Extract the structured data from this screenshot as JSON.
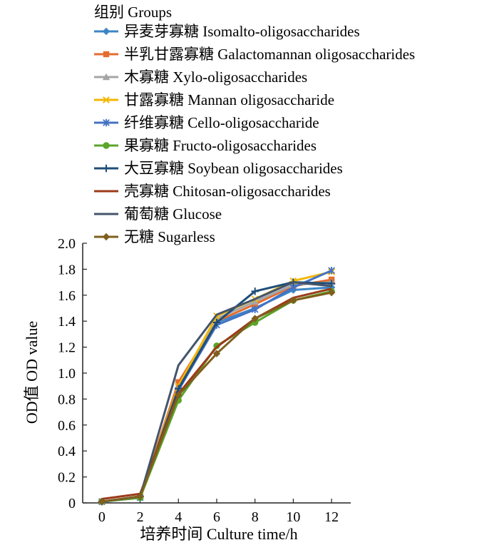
{
  "chart_data": {
    "type": "line",
    "title": "",
    "legend_title": "组别  Groups",
    "legend_position": "top-left",
    "xlabel": "培养时间  Culture time/h",
    "ylabel": "OD值  OD value",
    "x": [
      0,
      2,
      4,
      6,
      8,
      10,
      12
    ],
    "xticks": [
      "0",
      "2",
      "4",
      "6",
      "8",
      "10",
      "12"
    ],
    "yticks": [
      "0",
      "0.2",
      "0.4",
      "0.6",
      "0.8",
      "1.0",
      "1.2",
      "1.4",
      "1.6",
      "1.8",
      "2.0"
    ],
    "xlim": [
      -1,
      13
    ],
    "ylim": [
      0,
      2.0
    ],
    "grid": false,
    "series": [
      {
        "name": "异麦芽寡糖  Isomalto-oligosaccharides",
        "color": "#3d85c6",
        "marker": "diamond",
        "values": [
          0.01,
          0.04,
          0.88,
          1.39,
          1.5,
          1.64,
          1.66
        ]
      },
      {
        "name": "半乳甘露寡糖  Galactomannan oligosaccharides",
        "color": "#e46c2e",
        "marker": "square",
        "values": [
          0.01,
          0.05,
          0.93,
          1.4,
          1.53,
          1.67,
          1.72
        ]
      },
      {
        "name": "木寡糖  Xylo-oligosaccharides",
        "color": "#a5a5a5",
        "marker": "triangle",
        "values": [
          0.01,
          0.05,
          0.86,
          1.42,
          1.55,
          1.68,
          1.7
        ]
      },
      {
        "name": "甘露寡糖  Mannan oligosaccharide",
        "color": "#f2b705",
        "marker": "x",
        "values": [
          0.01,
          0.05,
          0.9,
          1.44,
          1.57,
          1.71,
          1.78
        ]
      },
      {
        "name": "纤维寡糖  Cello-oligosaccharide",
        "color": "#4472c4",
        "marker": "star",
        "values": [
          0.01,
          0.04,
          0.87,
          1.37,
          1.49,
          1.66,
          1.79
        ]
      },
      {
        "name": "果寡糖  Fructo-oligosaccharides",
        "color": "#5aa52a",
        "marker": "circle",
        "values": [
          0.01,
          0.04,
          0.79,
          1.21,
          1.39,
          1.56,
          1.63
        ]
      },
      {
        "name": "大豆寡糖  Soybean oligosaccharides",
        "color": "#1f4e79",
        "marker": "plus",
        "values": [
          0.01,
          0.05,
          0.88,
          1.39,
          1.63,
          1.7,
          1.69
        ]
      },
      {
        "name": "壳寡糖  Chitosan-oligosaccharides",
        "color": "#9c3a1a",
        "marker": "none",
        "values": [
          0.03,
          0.07,
          0.84,
          1.2,
          1.42,
          1.58,
          1.65
        ]
      },
      {
        "name": "葡萄糖  Glucose",
        "color": "#44546a",
        "marker": "none",
        "values": [
          0.01,
          0.05,
          1.06,
          1.45,
          1.57,
          1.7,
          1.67
        ]
      },
      {
        "name": "无糖  Sugarless",
        "color": "#7f5f1e",
        "marker": "diamond",
        "values": [
          0.01,
          0.05,
          0.83,
          1.15,
          1.42,
          1.56,
          1.62
        ]
      }
    ]
  }
}
